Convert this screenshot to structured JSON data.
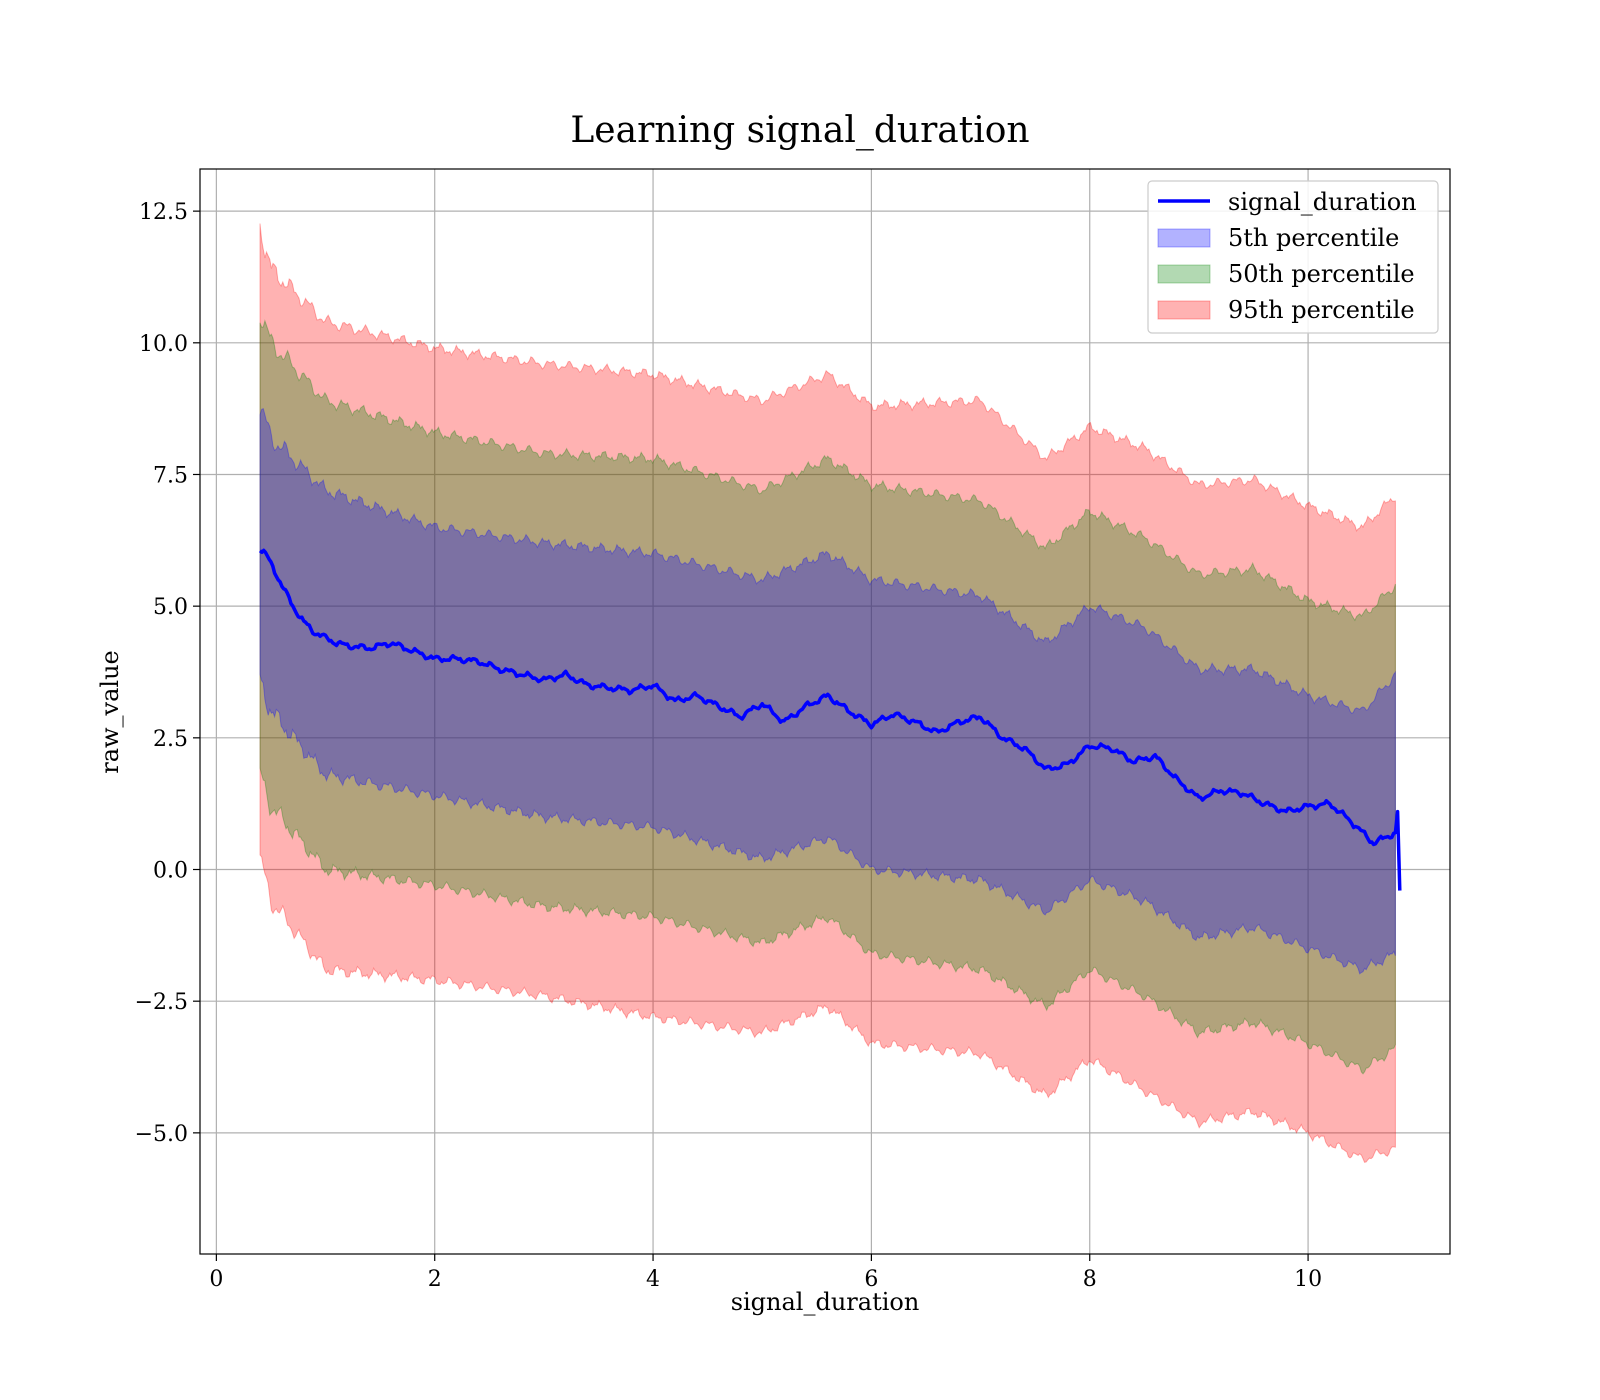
{
  "chart_data": {
    "type": "line",
    "title": "Learning signal_duration",
    "xlabel": "signal_duration",
    "ylabel": "raw_value",
    "xlim": [
      -0.15,
      11.3
    ],
    "ylim": [
      -7.3,
      13.3
    ],
    "xticks": [
      0,
      2,
      4,
      6,
      8,
      10
    ],
    "xtick_labels": [
      "0",
      "2",
      "4",
      "6",
      "8",
      "10"
    ],
    "yticks": [
      -5.0,
      -2.5,
      0.0,
      2.5,
      5.0,
      7.5,
      10.0,
      12.5
    ],
    "ytick_labels": [
      "−5.0",
      "−2.5",
      "0.0",
      "2.5",
      "5.0",
      "7.5",
      "10.0",
      "12.5"
    ],
    "grid": true,
    "legend_position": "top-right",
    "colors": {
      "line": "#0000ff",
      "p5": "#0000ff",
      "p50": "#008000",
      "p95": "#ff0000"
    },
    "series": [
      {
        "name": "signal_duration",
        "kind": "line",
        "x": [
          0.4,
          0.45,
          0.5,
          0.6,
          0.7,
          0.8,
          0.9,
          1.0,
          1.1,
          1.2,
          1.4,
          1.6,
          1.8,
          2.0,
          2.2,
          2.4,
          2.6,
          2.8,
          3.0,
          3.2,
          3.4,
          3.6,
          3.8,
          4.0,
          4.2,
          4.4,
          4.6,
          4.8,
          5.0,
          5.2,
          5.4,
          5.6,
          5.8,
          6.0,
          6.2,
          6.4,
          6.6,
          6.8,
          7.0,
          7.2,
          7.4,
          7.6,
          7.8,
          8.0,
          8.2,
          8.4,
          8.6,
          8.8,
          9.0,
          9.2,
          9.4,
          9.6,
          9.8,
          10.0,
          10.2,
          10.4,
          10.6,
          10.8,
          10.82,
          10.84
        ],
        "y": [
          6.1,
          6.0,
          5.8,
          5.4,
          5.0,
          4.7,
          4.5,
          4.4,
          4.3,
          4.25,
          4.2,
          4.3,
          4.15,
          4.0,
          4.0,
          3.95,
          3.8,
          3.7,
          3.6,
          3.7,
          3.5,
          3.45,
          3.4,
          3.5,
          3.2,
          3.3,
          3.1,
          2.9,
          3.15,
          2.8,
          3.1,
          3.3,
          3.0,
          2.75,
          2.95,
          2.8,
          2.6,
          2.8,
          2.9,
          2.5,
          2.3,
          1.9,
          2.0,
          2.35,
          2.3,
          2.05,
          2.15,
          1.7,
          1.35,
          1.5,
          1.45,
          1.25,
          1.1,
          1.2,
          1.25,
          0.9,
          0.5,
          0.7,
          1.1,
          -0.4
        ]
      },
      {
        "name": "5th percentile",
        "kind": "band",
        "x": [
          0.4,
          0.5,
          1.0,
          2.0,
          3.0,
          4.0,
          5.0,
          5.6,
          6.0,
          7.0,
          7.6,
          8.0,
          8.5,
          9.0,
          9.5,
          10.0,
          10.5,
          10.8
        ],
        "upper": [
          8.8,
          8.2,
          7.2,
          6.5,
          6.2,
          6.0,
          5.5,
          6.0,
          5.5,
          5.2,
          4.3,
          5.0,
          4.6,
          3.8,
          3.8,
          3.3,
          3.0,
          3.7
        ],
        "lower": [
          3.6,
          3.0,
          1.8,
          1.4,
          1.0,
          0.8,
          0.2,
          0.6,
          0.0,
          -0.2,
          -0.8,
          -0.2,
          -0.6,
          -1.3,
          -1.1,
          -1.5,
          -1.9,
          -1.6
        ]
      },
      {
        "name": "50th percentile",
        "kind": "band",
        "x": [
          0.4,
          0.5,
          1.0,
          2.0,
          3.0,
          4.0,
          5.0,
          5.6,
          6.0,
          7.0,
          7.6,
          8.0,
          8.5,
          9.0,
          9.5,
          10.0,
          10.5,
          10.8
        ],
        "upper": [
          10.6,
          10.0,
          8.9,
          8.3,
          7.9,
          7.8,
          7.2,
          7.8,
          7.3,
          7.0,
          6.1,
          6.8,
          6.3,
          5.6,
          5.7,
          5.1,
          4.8,
          5.4
        ],
        "lower": [
          1.8,
          1.2,
          0.0,
          -0.3,
          -0.7,
          -0.9,
          -1.4,
          -0.9,
          -1.6,
          -1.9,
          -2.6,
          -1.9,
          -2.4,
          -3.1,
          -2.9,
          -3.3,
          -3.8,
          -3.4
        ]
      },
      {
        "name": "95th percentile",
        "kind": "band",
        "x": [
          0.4,
          0.5,
          1.0,
          2.0,
          3.0,
          4.0,
          5.0,
          5.6,
          6.0,
          7.0,
          7.6,
          8.0,
          8.5,
          9.0,
          9.5,
          10.0,
          10.5,
          10.8
        ],
        "upper": [
          12.2,
          11.4,
          10.4,
          9.9,
          9.6,
          9.4,
          8.9,
          9.4,
          8.8,
          8.9,
          7.8,
          8.4,
          8.0,
          7.3,
          7.4,
          6.9,
          6.5,
          7.1
        ],
        "lower": [
          0.2,
          -0.6,
          -1.9,
          -2.1,
          -2.4,
          -2.8,
          -3.1,
          -2.6,
          -3.3,
          -3.5,
          -4.3,
          -3.6,
          -4.2,
          -4.8,
          -4.6,
          -5.0,
          -5.5,
          -5.3
        ]
      }
    ]
  }
}
